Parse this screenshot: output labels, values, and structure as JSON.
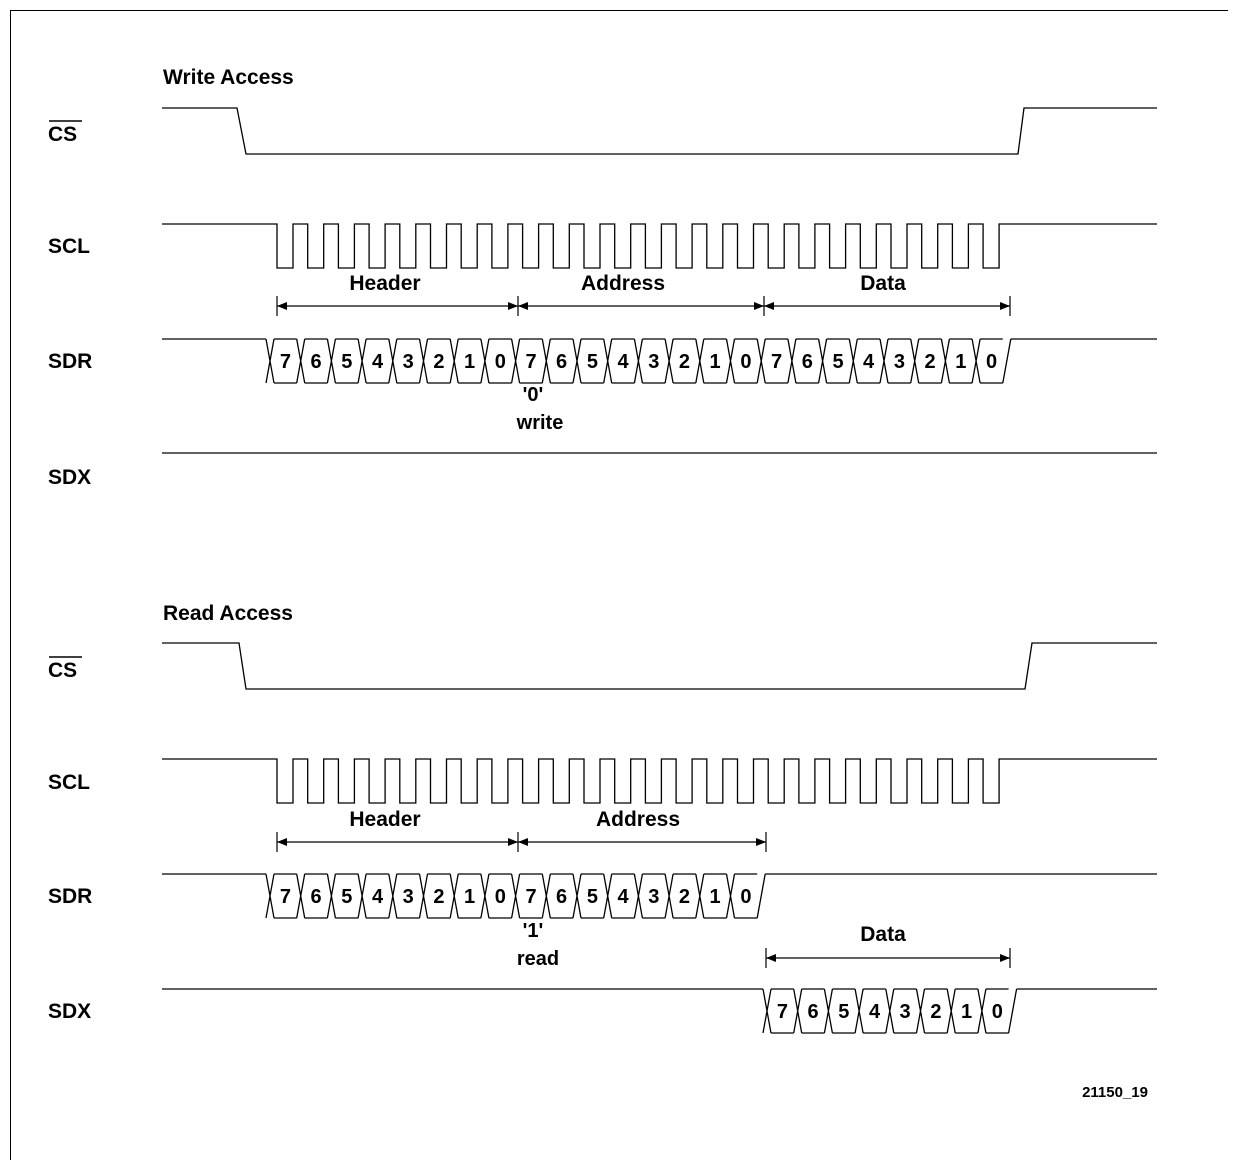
{
  "figure_id": "21150_19",
  "panels": [
    {
      "title": "Write Access",
      "signals": [
        "CS",
        "SCL",
        "SDR",
        "SDX"
      ],
      "segments": [
        "Header",
        "Address",
        "Data"
      ],
      "rw_bit": {
        "value": "'0'",
        "label": "write"
      },
      "bits": [
        "7",
        "6",
        "5",
        "4",
        "3",
        "2",
        "1",
        "0"
      ]
    },
    {
      "title": "Read Access",
      "signals": [
        "CS",
        "SCL",
        "SDR",
        "SDX"
      ],
      "segments": [
        "Header",
        "Address",
        "Data"
      ],
      "rw_bit": {
        "value": "'1'",
        "label": "read"
      },
      "bits": [
        "7",
        "6",
        "5",
        "4",
        "3",
        "2",
        "1",
        "0"
      ]
    }
  ]
}
